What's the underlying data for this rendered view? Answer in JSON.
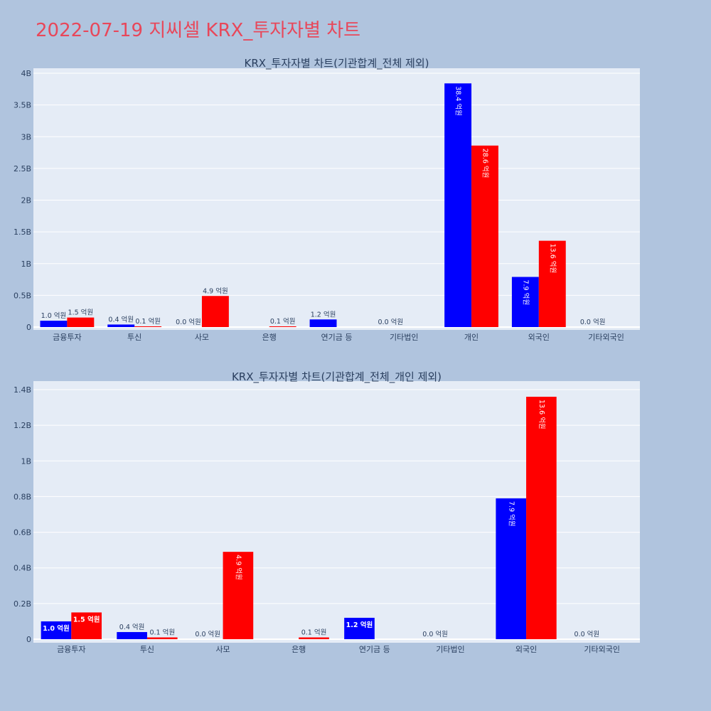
{
  "title": "2022-07-19 지씨셀 KRX_투자자별 차트",
  "colors": {
    "background": "#b0c4de",
    "plot_bg": "#e5ecf6",
    "grid": "#ffffff",
    "title": "#e8475a",
    "series_a": "#0000ff",
    "series_b": "#ff0000"
  },
  "chart_data": [
    {
      "type": "bar",
      "title": "KRX_투자자별 차트(기관합계_전체 제외)",
      "categories": [
        "금융투자",
        "투신",
        "사모",
        "은행",
        "연기금 등",
        "기타법인",
        "개인",
        "외국인",
        "기타외국인"
      ],
      "series": [
        {
          "values": [
            0.1,
            0.04,
            0.0,
            0.0,
            0.12,
            0.0,
            3.84,
            0.79,
            0.0
          ],
          "labels": [
            "1.0 억원",
            "0.4 억원",
            "0.0 억원",
            "",
            "1.2 억원",
            "0.0 억원",
            "38.4 억원",
            "7.9 억원",
            "0.0 억원"
          ]
        },
        {
          "values": [
            0.15,
            0.01,
            0.49,
            0.01,
            0.0,
            0.0,
            2.86,
            1.36,
            0.0
          ],
          "labels": [
            "1.5 억원",
            "0.1 억원",
            "4.9 억원",
            "0.1 억원",
            "",
            "",
            "28.6 억원",
            "13.6 억원",
            ""
          ]
        }
      ],
      "yticks": [
        "0",
        "0.5B",
        "1B",
        "1.5B",
        "2B",
        "2.5B",
        "3B",
        "3.5B",
        "4B"
      ],
      "ylim": [
        0,
        4.0
      ],
      "grid": true
    },
    {
      "type": "bar",
      "title": "KRX_투자자별 차트(기관합계_전체_개인 제외)",
      "categories": [
        "금융투자",
        "투신",
        "사모",
        "은행",
        "연기금 등",
        "기타법인",
        "외국인",
        "기타외국인"
      ],
      "series": [
        {
          "values": [
            0.1,
            0.04,
            0.0,
            0.0,
            0.12,
            0.0,
            0.79,
            0.0
          ],
          "labels": [
            "1.0 억원",
            "0.4 억원",
            "0.0 억원",
            "",
            "1.2 억원",
            "0.0 억원",
            "7.9 억원",
            "0.0 억원"
          ]
        },
        {
          "values": [
            0.15,
            0.01,
            0.49,
            0.01,
            0.0,
            0.0,
            1.36,
            0.0
          ],
          "labels": [
            "1.5 억원",
            "0.1 억원",
            "4.9 억원",
            "0.1 억원",
            "",
            "",
            "13.6 억원",
            ""
          ]
        }
      ],
      "yticks": [
        "0",
        "0.2B",
        "0.4B",
        "0.6B",
        "0.8B",
        "1B",
        "1.2B",
        "1.4B"
      ],
      "ylim": [
        0,
        1.4
      ],
      "grid": true
    }
  ]
}
